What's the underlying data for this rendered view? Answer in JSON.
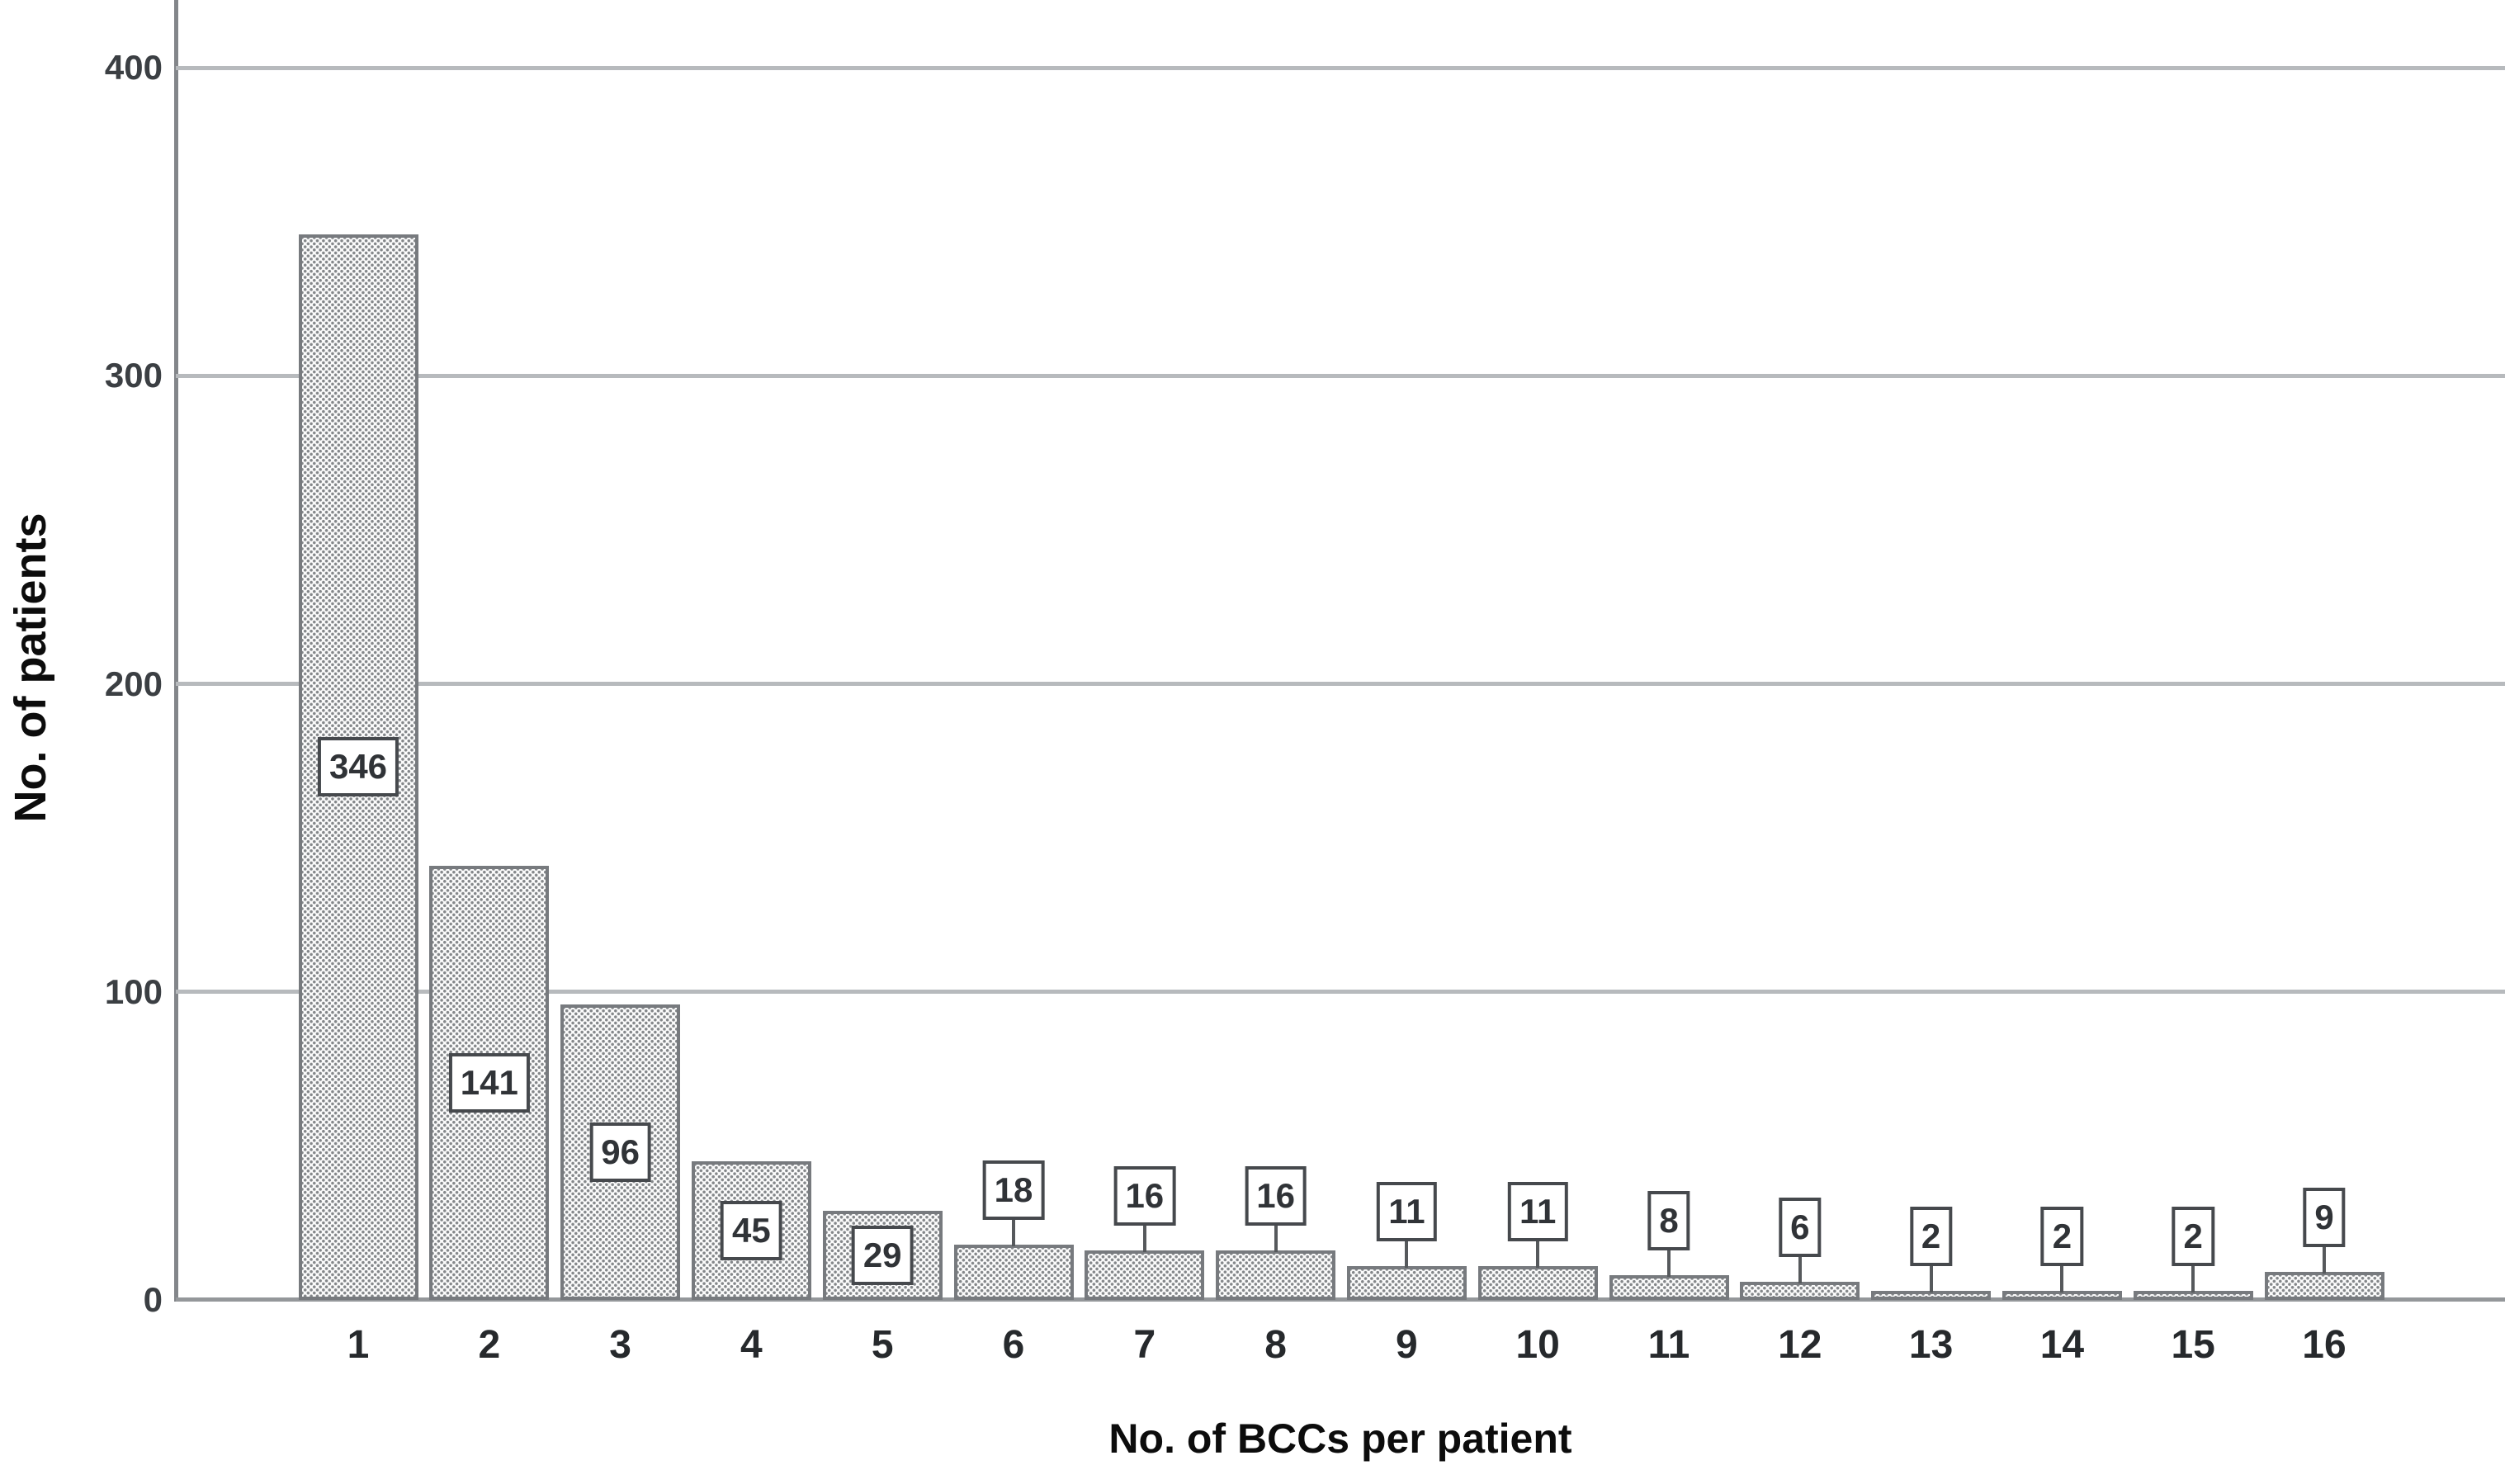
{
  "chart_data": {
    "type": "bar",
    "title": "",
    "xlabel": "No. of BCCs per patient",
    "ylabel": "No. of patients",
    "categories": [
      "1",
      "2",
      "3",
      "4",
      "5",
      "6",
      "7",
      "8",
      "9",
      "10",
      "11",
      "12",
      "13",
      "14",
      "15",
      "16"
    ],
    "values": [
      346,
      141,
      96,
      45,
      29,
      18,
      16,
      16,
      11,
      11,
      8,
      6,
      2,
      2,
      2,
      9
    ],
    "bar_labels": [
      "346",
      "141",
      "96",
      "45",
      "29",
      "18",
      "16",
      "16",
      "11",
      "11",
      "8",
      "6",
      "2",
      "2",
      "2",
      "9"
    ],
    "bar_label_positions": [
      "inside",
      "inside",
      "inside",
      "inside",
      "inside",
      "outside",
      "outside",
      "outside",
      "outside",
      "outside",
      "outside",
      "outside",
      "outside",
      "outside",
      "outside",
      "outside"
    ],
    "y_ticks": [
      0,
      100,
      200,
      300,
      400
    ],
    "ylim": [
      0,
      420
    ],
    "grid": "horizontal",
    "legend": "none",
    "colors": {
      "background": "#ffffff",
      "bar_fill": "#fcfcfc",
      "bar_dot_pattern": "#84878a",
      "bar_border": "#777a7e",
      "gridline": "#b7babd",
      "axis_line": "#83868a",
      "label_box_border": "#46494d",
      "label_text": "#303337",
      "tick_text": "#3b3f43",
      "title_text": "#0c0c0c"
    }
  }
}
